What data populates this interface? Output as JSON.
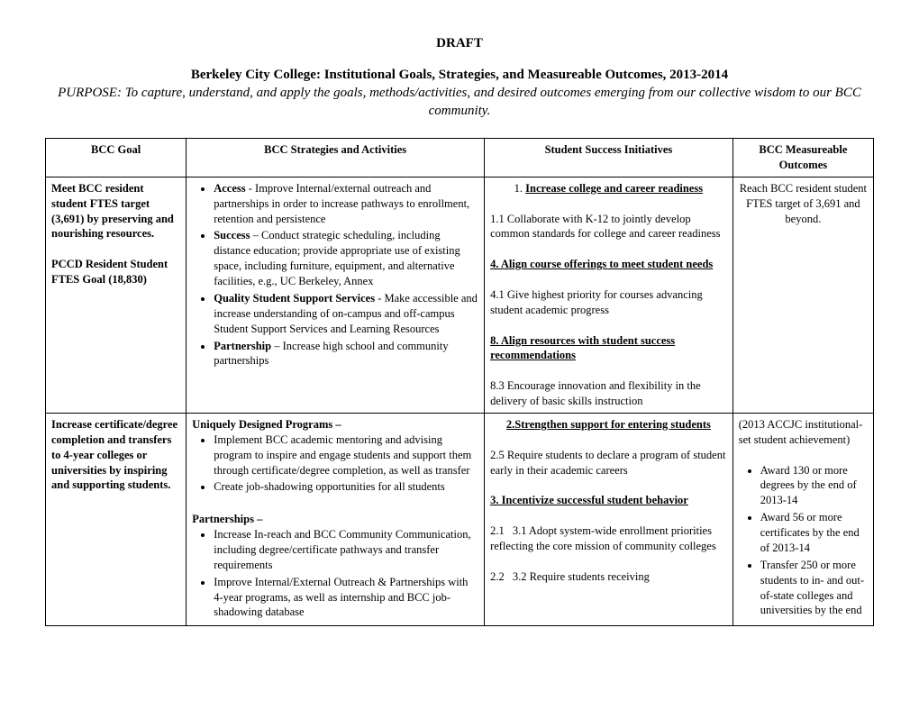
{
  "header": {
    "draft": "DRAFT",
    "title": "Berkeley City College: Institutional Goals, Strategies, and Measureable Outcomes, 2013-2014",
    "purpose": "PURPOSE: To capture, understand, and apply the goals, methods/activities, and desired outcomes emerging from our collective wisdom to our BCC community."
  },
  "table": {
    "headers": {
      "goal": "BCC Goal",
      "strategies": "BCC Strategies and Activities",
      "initiatives": "Student Success Initiatives",
      "outcomes": "BCC Measureable Outcomes"
    },
    "rows": [
      {
        "goal": {
          "main": "Meet BCC resident student FTES target (3,691) by preserving and nourishing resources.",
          "sub": "PCCD Resident Student FTES Goal (18,830)"
        },
        "strategies": [
          {
            "lead": "Access",
            "text": " - Improve Internal/external outreach and partnerships in order to increase pathways to enrollment, retention and persistence"
          },
          {
            "lead": "Success",
            "text": " – Conduct strategic scheduling, including distance education; provide appropriate use of existing space, including furniture, equipment, and alternative facilities, e.g., UC Berkeley, Annex"
          },
          {
            "lead": "Quality Student Support Services",
            "text": " - Make accessible and increase understanding of on-campus and off-campus Student Support Services and Learning Resources"
          },
          {
            "lead": "Partnership",
            "text": " – Increase high school and community partnerships"
          }
        ],
        "initiatives": {
          "i1_num": "1.",
          "i1_title": "Increase college and career readiness",
          "i1_1": "1.1 Collaborate with K-12 to jointly develop common standards for college and career readiness",
          "i4_title": "4. Align course offerings to meet student needs",
          "i4_1": "4.1 Give highest priority for courses advancing student academic progress",
          "i8_title": "8. Align resources with student success recommendations",
          "i8_3": "8.3 Encourage innovation and flexibility in the delivery of basic skills instruction"
        },
        "outcomes": {
          "text": "Reach BCC resident student FTES target of 3,691 and beyond."
        }
      },
      {
        "goal": {
          "main": "Increase certificate/degree completion and transfers to 4-year colleges or universities by inspiring and supporting students."
        },
        "strategies": {
          "h1": "Uniquely Designed Programs –",
          "b1": "Implement BCC academic mentoring and advising program to inspire and engage students and support them through certificate/degree completion, as well as transfer",
          "b2": "Create job-shadowing opportunities for all students",
          "h2": "Partnerships –",
          "b3": "Increase In-reach and BCC Community Communication, including degree/certificate pathways and transfer requirements",
          "b4": "Improve Internal/External Outreach & Partnerships with 4-year programs, as well as internship and BCC job-shadowing database"
        },
        "initiatives": {
          "i2_title": "2.Strengthen support for entering students",
          "i2_5": "2.5 Require students to declare a program of student early in their academic careers",
          "i3_title": "3. Incentivize successful student behavior",
          "i3_1a": "2.1",
          "i3_1b": "3.1 Adopt system-wide enrollment priorities reflecting the core mission of community colleges",
          "i3_2a": "2.2",
          "i3_2b": "3.2 Require students receiving"
        },
        "outcomes": {
          "lead": "(2013 ACCJC institutional-set student achievement)",
          "b1": "Award 130 or more degrees by the end of 2013-14",
          "b2": "Award 56 or more certificates by the end of 2013-14",
          "b3": "Transfer 250 or more students to in- and out-of-state colleges and universities by the end"
        }
      }
    ]
  }
}
